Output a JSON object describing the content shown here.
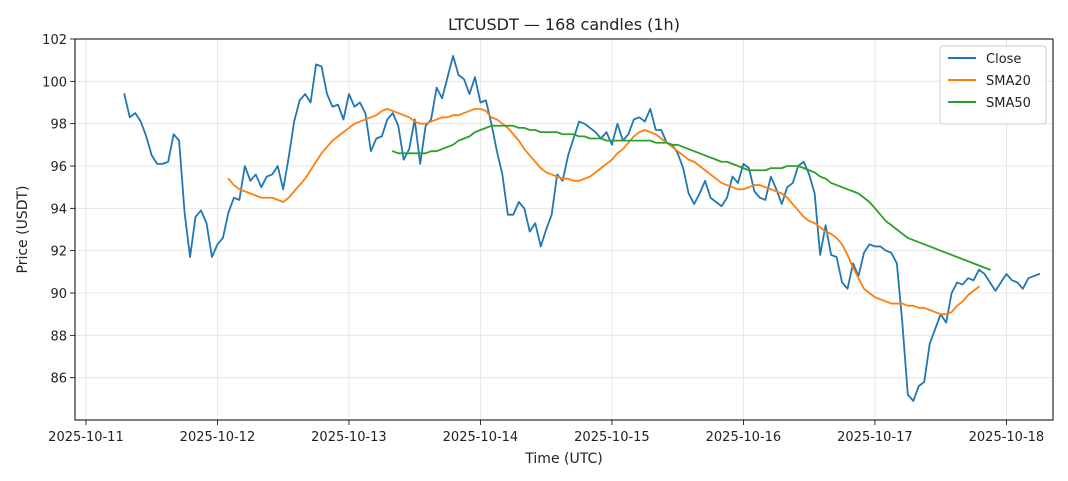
{
  "chart_data": {
    "type": "line",
    "title": "LTCUSDT — 168 candles (1h)",
    "xlabel": "Time (UTC)",
    "ylabel": "Price (USDT)",
    "x_start": "2025-10-11T07:00",
    "x_step_hours": 1,
    "xlim": [
      "2025-10-10T22:00",
      "2025-10-18T08:30"
    ],
    "ylim": [
      84,
      102
    ],
    "x_ticks": [
      "2025-10-11",
      "2025-10-12",
      "2025-10-13",
      "2025-10-14",
      "2025-10-15",
      "2025-10-16",
      "2025-10-17",
      "2025-10-18"
    ],
    "y_ticks": [
      "86",
      "88",
      "90",
      "92",
      "94",
      "96",
      "98",
      "100",
      "102"
    ],
    "grid": true,
    "legend_position": "top-right",
    "series": [
      {
        "name": "Close",
        "color": "#1f77b4",
        "start_index": 0,
        "values": [
          99.4,
          98.3,
          98.5,
          98.1,
          97.4,
          96.5,
          96.1,
          96.1,
          96.2,
          97.5,
          97.2,
          93.8,
          91.7,
          93.6,
          93.9,
          93.3,
          91.7,
          92.3,
          92.6,
          93.8,
          94.5,
          94.4,
          96.0,
          95.3,
          95.6,
          95.0,
          95.5,
          95.6,
          96.0,
          94.9,
          96.4,
          98.1,
          99.1,
          99.4,
          99.0,
          100.8,
          100.7,
          99.4,
          98.8,
          98.9,
          98.2,
          99.4,
          98.8,
          99.0,
          98.5,
          96.7,
          97.3,
          97.4,
          98.2,
          98.5,
          97.9,
          96.3,
          96.8,
          98.2,
          96.1,
          97.9,
          98.2,
          99.7,
          99.2,
          100.2,
          101.2,
          100.3,
          100.1,
          99.4,
          100.2,
          99.0,
          99.1,
          98.0,
          96.7,
          95.6,
          93.7,
          93.7,
          94.3,
          94.0,
          92.9,
          93.3,
          92.2,
          93.0,
          93.7,
          95.6,
          95.3,
          96.5,
          97.3,
          98.1,
          98.0,
          97.8,
          97.6,
          97.3,
          97.6,
          97.0,
          98.0,
          97.2,
          97.5,
          98.2,
          98.3,
          98.1,
          98.7,
          97.7,
          97.7,
          97.1,
          97.0,
          96.6,
          95.9,
          94.7,
          94.2,
          94.7,
          95.3,
          94.5,
          94.3,
          94.1,
          94.5,
          95.5,
          95.2,
          96.1,
          95.9,
          94.8,
          94.5,
          94.4,
          95.5,
          94.9,
          94.2,
          95.0,
          95.2,
          96.0,
          96.2,
          95.6,
          94.7,
          91.8,
          93.2,
          91.8,
          91.7,
          90.5,
          90.2,
          91.4,
          90.8,
          91.9,
          92.3,
          92.2,
          92.2,
          92.0,
          91.9,
          91.4,
          88.6,
          85.2,
          84.9,
          85.6,
          85.8,
          87.6,
          88.3,
          89.0,
          88.6,
          90.0,
          90.5,
          90.4,
          90.7,
          90.6,
          91.1,
          90.9,
          90.5,
          90.1,
          90.5,
          90.9,
          90.6,
          90.5,
          90.2,
          90.7,
          90.8,
          90.9
        ]
      },
      {
        "name": "SMA20",
        "color": "#ff7f0e",
        "start_index": 19,
        "values": [
          95.4,
          95.1,
          94.9,
          94.8,
          94.7,
          94.6,
          94.5,
          94.5,
          94.5,
          94.4,
          94.3,
          94.5,
          94.8,
          95.1,
          95.4,
          95.8,
          96.2,
          96.6,
          96.9,
          97.2,
          97.4,
          97.6,
          97.8,
          98.0,
          98.1,
          98.2,
          98.3,
          98.4,
          98.6,
          98.7,
          98.6,
          98.5,
          98.4,
          98.3,
          98.1,
          98.0,
          98.0,
          98.1,
          98.2,
          98.3,
          98.3,
          98.4,
          98.4,
          98.5,
          98.6,
          98.7,
          98.7,
          98.6,
          98.3,
          98.2,
          98.0,
          97.8,
          97.5,
          97.2,
          96.8,
          96.5,
          96.2,
          95.9,
          95.7,
          95.6,
          95.5,
          95.4,
          95.4,
          95.3,
          95.3,
          95.4,
          95.5,
          95.7,
          95.9,
          96.1,
          96.3,
          96.6,
          96.8,
          97.1,
          97.4,
          97.6,
          97.7,
          97.6,
          97.5,
          97.3,
          97.1,
          96.9,
          96.7,
          96.5,
          96.3,
          96.2,
          96.0,
          95.8,
          95.6,
          95.4,
          95.2,
          95.1,
          95.0,
          94.9,
          94.9,
          95.0,
          95.1,
          95.1,
          95.0,
          94.9,
          94.8,
          94.7,
          94.5,
          94.2,
          93.9,
          93.6,
          93.4,
          93.3,
          93.1,
          92.9,
          92.8,
          92.6,
          92.3,
          91.8,
          91.2,
          90.7,
          90.2,
          90.0,
          89.8,
          89.7,
          89.6,
          89.5,
          89.5,
          89.5,
          89.4,
          89.4,
          89.3,
          89.3,
          89.2,
          89.1,
          89.0,
          89.0,
          89.1,
          89.4,
          89.6,
          89.9,
          90.1,
          90.3
        ]
      },
      {
        "name": "SMA50",
        "color": "#2ca02c",
        "start_index": 49,
        "values": [
          96.7,
          96.6,
          96.6,
          96.6,
          96.6,
          96.6,
          96.6,
          96.7,
          96.7,
          96.8,
          96.9,
          97.0,
          97.2,
          97.3,
          97.4,
          97.6,
          97.7,
          97.8,
          97.9,
          97.9,
          97.9,
          97.9,
          97.9,
          97.8,
          97.8,
          97.7,
          97.7,
          97.6,
          97.6,
          97.6,
          97.6,
          97.5,
          97.5,
          97.5,
          97.4,
          97.4,
          97.3,
          97.3,
          97.3,
          97.2,
          97.2,
          97.2,
          97.2,
          97.2,
          97.2,
          97.2,
          97.2,
          97.2,
          97.1,
          97.1,
          97.1,
          97.0,
          97.0,
          96.9,
          96.8,
          96.7,
          96.6,
          96.5,
          96.4,
          96.3,
          96.2,
          96.2,
          96.1,
          96.0,
          95.9,
          95.8,
          95.8,
          95.8,
          95.8,
          95.9,
          95.9,
          95.9,
          96.0,
          96.0,
          96.0,
          95.9,
          95.8,
          95.7,
          95.5,
          95.4,
          95.2,
          95.1,
          95.0,
          94.9,
          94.8,
          94.7,
          94.5,
          94.3,
          94.0,
          93.7,
          93.4,
          93.2,
          93.0,
          92.8,
          92.6,
          92.5,
          92.4,
          92.3,
          92.2,
          92.1,
          92.0,
          91.9,
          91.8,
          91.7,
          91.6,
          91.5,
          91.4,
          91.3,
          91.2,
          91.1
        ]
      }
    ]
  }
}
